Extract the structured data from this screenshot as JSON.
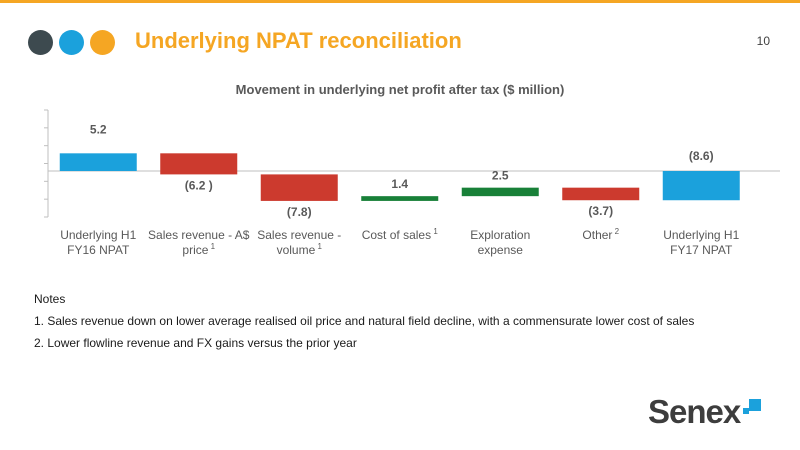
{
  "header": {
    "title": "Underlying NPAT reconciliation",
    "page_number": "10",
    "title_color": "#f5a623",
    "rule_color": "#f5a623",
    "dots": [
      {
        "name": "dark-dot",
        "color": "#3d4a4f"
      },
      {
        "name": "blue-dot",
        "color": "#1ba1dc"
      },
      {
        "name": "orange-dot",
        "color": "#f5a623"
      }
    ]
  },
  "chart_data": {
    "type": "bar",
    "subtype": "waterfall",
    "title": "Movement in underlying net profit after tax ($ million)",
    "xlabel": "",
    "ylabel": "",
    "categories": [
      {
        "lines": [
          "Underlying H1",
          "FY16 NPAT"
        ],
        "sup": ""
      },
      {
        "lines": [
          "Sales revenue - A$",
          "price"
        ],
        "sup": "1"
      },
      {
        "lines": [
          "Sales revenue -",
          "volume"
        ],
        "sup": "1"
      },
      {
        "lines": [
          "Cost of sales"
        ],
        "sup": "1"
      },
      {
        "lines": [
          "Exploration",
          "expense"
        ],
        "sup": ""
      },
      {
        "lines": [
          "Other"
        ],
        "sup": "2"
      },
      {
        "lines": [
          "Underlying H1",
          "FY17 NPAT"
        ],
        "sup": ""
      }
    ],
    "values": [
      5.2,
      -6.2,
      -7.8,
      1.4,
      2.5,
      -3.7,
      -8.6
    ],
    "labels": [
      "5.2",
      "(6.2 )",
      "(7.8)",
      "1.4",
      "2.5",
      "(3.7)",
      "(8.6)"
    ],
    "kinds": [
      "total",
      "delta",
      "delta",
      "delta",
      "delta",
      "delta",
      "total"
    ],
    "colors": {
      "total": "#1ba1dc",
      "decrease": "#cc3a2e",
      "increase": "#188038"
    },
    "ylim": [
      -14,
      10
    ],
    "grid": false,
    "legend": "none"
  },
  "notes": {
    "heading": "Notes",
    "items": [
      "1. Sales revenue down on lower average realised oil price and natural field decline, with a commensurate lower cost of sales",
      "2. Lower flowline revenue and FX gains versus the prior year"
    ]
  },
  "logo": {
    "text": "Senex",
    "mark_color": "#1ba1dc"
  }
}
